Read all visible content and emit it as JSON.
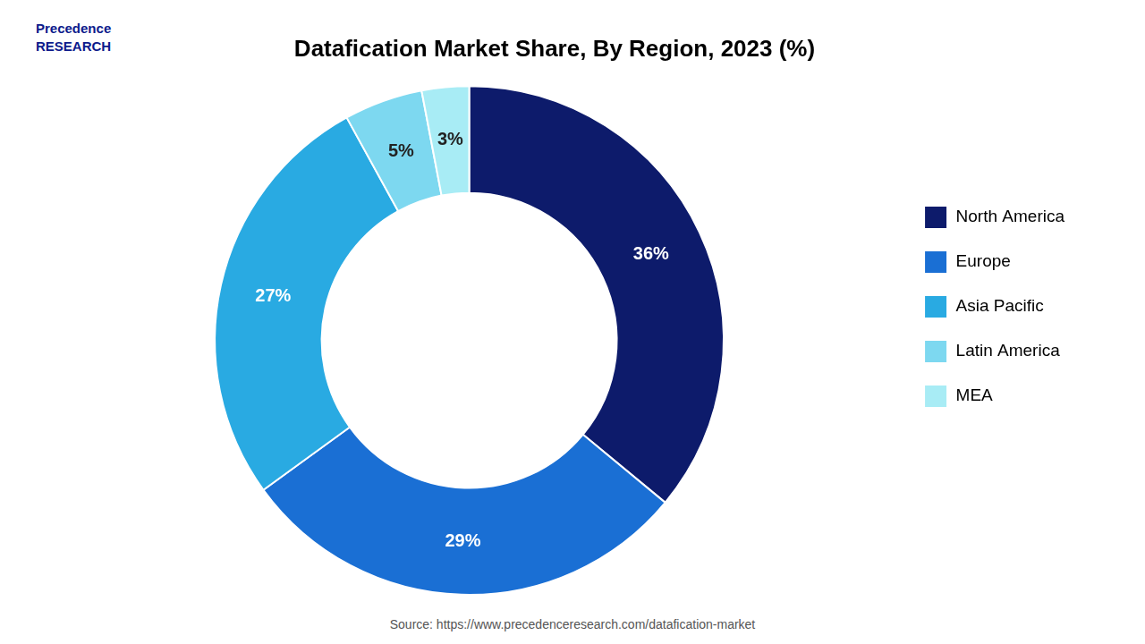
{
  "chart_data": {
    "type": "donut",
    "title": "Datafication Market Share, By Region, 2023 (%)",
    "categories": [
      "North America",
      "Europe",
      "Asia Pacific",
      "Latin America",
      "MEA"
    ],
    "values": [
      36,
      29,
      27,
      5,
      3
    ],
    "value_labels": [
      "36%",
      "29%",
      "27%",
      "5%",
      "3%"
    ],
    "colors": [
      "#0d1b6b",
      "#1a6fd4",
      "#29aae2",
      "#7dd8f0",
      "#a8ecf5"
    ],
    "data_labels": true,
    "legend": "right",
    "annotations": [
      "Precedence\nRESEARCH",
      "Source: https://www.precedenceresearch.com/datafication-market"
    ]
  }
}
